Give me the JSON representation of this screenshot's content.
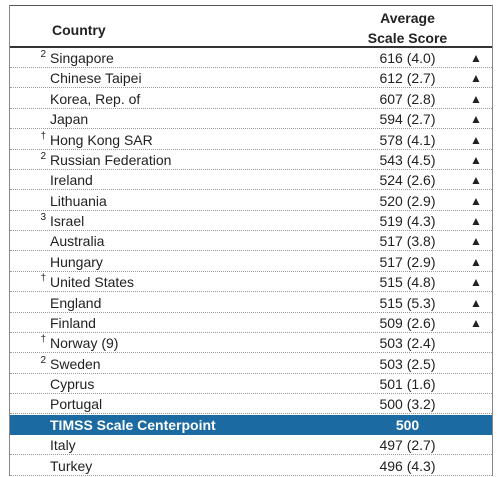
{
  "header": {
    "country": "Country",
    "score": [
      "Average",
      "Scale Score"
    ]
  },
  "table": {
    "rows": [
      {
        "note": "2",
        "country": "Singapore",
        "score": "616 (4.0)",
        "arrow": "▲"
      },
      {
        "country": "Chinese Taipei",
        "score": "612 (2.7)",
        "arrow": "▲"
      },
      {
        "country": "Korea, Rep. of",
        "score": "607 (2.8)",
        "arrow": "▲"
      },
      {
        "country": "Japan",
        "score": "594 (2.7)",
        "arrow": "▲"
      },
      {
        "note": "†",
        "country": "Hong Kong SAR",
        "score": "578 (4.1)",
        "arrow": "▲"
      },
      {
        "note": "2",
        "country": "Russian Federation",
        "score": "543 (4.5)",
        "arrow": "▲"
      },
      {
        "country": "Ireland",
        "score": "524 (2.6)",
        "arrow": "▲"
      },
      {
        "country": "Lithuania",
        "score": "520 (2.9)",
        "arrow": "▲"
      },
      {
        "note": "3",
        "country": "Israel",
        "score": "519 (4.3)",
        "arrow": "▲"
      },
      {
        "country": "Australia",
        "score": "517 (3.8)",
        "arrow": "▲"
      },
      {
        "country": "Hungary",
        "score": "517 (2.9)",
        "arrow": "▲"
      },
      {
        "note": "†",
        "country": "United States",
        "score": "515 (4.8)",
        "arrow": "▲"
      },
      {
        "country": "England",
        "score": "515 (5.3)",
        "arrow": "▲"
      },
      {
        "country": "Finland",
        "score": "509 (2.6)",
        "arrow": "▲"
      },
      {
        "note": "†",
        "country": "Norway (9)",
        "score": "503 (2.4)"
      },
      {
        "note": "2",
        "country": "Sweden",
        "score": "503 (2.5)"
      },
      {
        "country": "Cyprus",
        "score": "501 (1.6)"
      },
      {
        "country": "Portugal",
        "score": "500 (3.2)"
      },
      {
        "country": "TIMSS Scale Centerpoint",
        "score": "500",
        "highlight": true
      },
      {
        "country": "Italy",
        "score": "497 (2.7)"
      },
      {
        "country": "Turkey",
        "score": "496 (4.3)"
      }
    ]
  }
}
